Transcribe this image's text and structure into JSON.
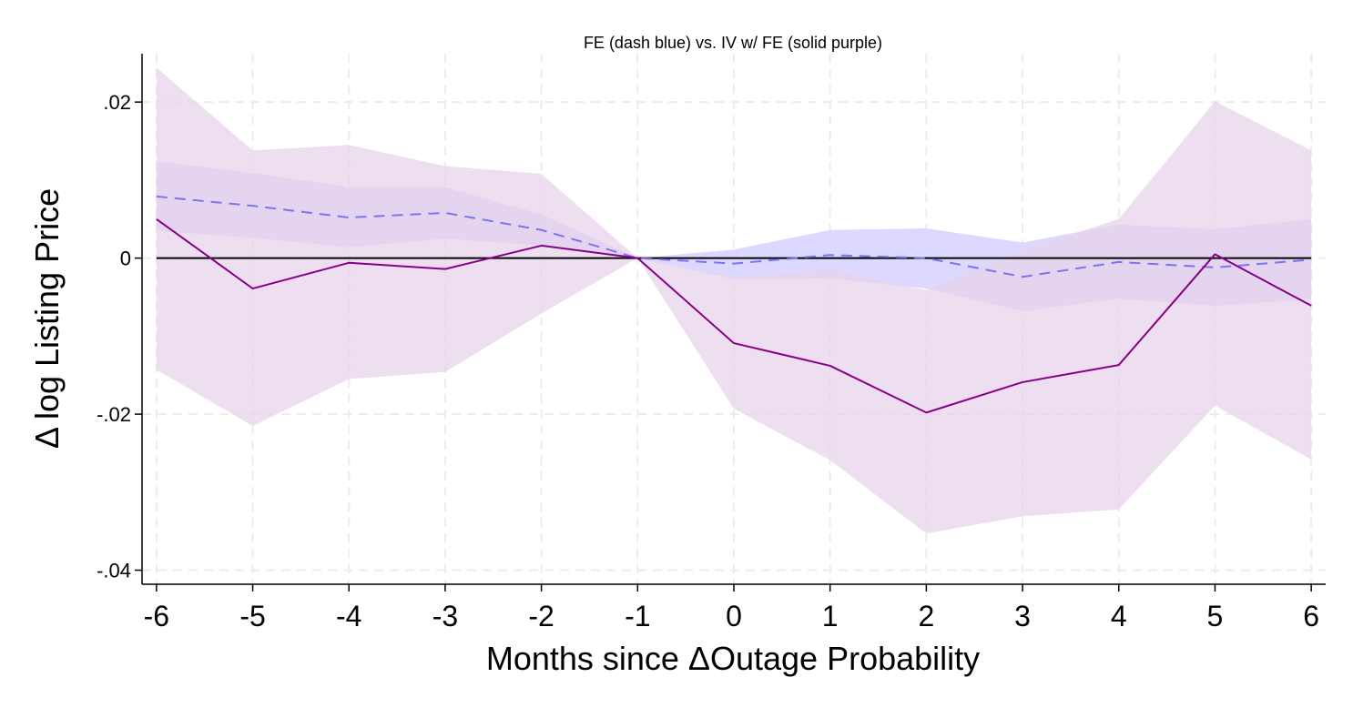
{
  "chart_data": {
    "type": "line",
    "title": "FE (dash blue) vs. IV w/ FE (solid purple)",
    "xlabel": "Months since ΔOutage Probability",
    "ylabel": "Δ log Listing Price",
    "x": [
      -6,
      -5,
      -4,
      -3,
      -2,
      -1,
      0,
      1,
      2,
      3,
      4,
      5,
      6
    ],
    "xticks": [
      -6,
      -5,
      -4,
      -3,
      -2,
      -1,
      0,
      1,
      2,
      3,
      4,
      5,
      6
    ],
    "xtick_labels": [
      "-6",
      "-5",
      "-4",
      "-3",
      "-2",
      "-1",
      "0",
      "1",
      "2",
      "3",
      "4",
      "5",
      "6"
    ],
    "yticks": [
      0.02,
      0,
      -0.02,
      -0.04
    ],
    "ytick_labels": [
      ".02",
      "0",
      "-.02",
      "-.04"
    ],
    "xlim": [
      -6.15,
      6.15
    ],
    "ylim": [
      -0.0418,
      0.0262
    ],
    "grid": true,
    "reference_line_y": 0,
    "series": [
      {
        "name": "FE",
        "style": "dashed",
        "color": "#7B73F0",
        "band_color": "#DCD8FF",
        "values": [
          0.0079,
          0.0067,
          0.0052,
          0.0058,
          0.0036,
          0.0,
          -0.0007,
          0.0004,
          0.0,
          -0.0024,
          -0.0005,
          -0.0012,
          -0.0002
        ],
        "lower": [
          0.0035,
          0.0026,
          0.0014,
          0.0025,
          0.0016,
          0.0,
          -0.0027,
          -0.0026,
          -0.0039,
          -0.0068,
          -0.0052,
          -0.0061,
          -0.0053
        ],
        "upper": [
          0.0124,
          0.0109,
          0.0091,
          0.0091,
          0.0056,
          0.0,
          0.0011,
          0.0036,
          0.0038,
          0.002,
          0.0043,
          0.0037,
          0.005
        ]
      },
      {
        "name": "IV w/ FE",
        "style": "solid",
        "color": "#880088",
        "band_color": "#E8D3EA",
        "values": [
          0.005,
          -0.0039,
          -0.0006,
          -0.0014,
          0.0016,
          0.0,
          -0.0109,
          -0.0138,
          -0.0198,
          -0.0159,
          -0.0137,
          0.0005,
          -0.0061
        ],
        "lower": [
          -0.0143,
          -0.0215,
          -0.0155,
          -0.0146,
          -0.0071,
          0.0,
          -0.0193,
          -0.0259,
          -0.0353,
          -0.0331,
          -0.0322,
          -0.0189,
          -0.0258
        ],
        "upper": [
          0.0244,
          0.0138,
          0.0145,
          0.0118,
          0.0108,
          0.0,
          -0.0025,
          -0.0015,
          -0.0041,
          0.001,
          0.005,
          0.0201,
          0.0138
        ]
      }
    ]
  }
}
